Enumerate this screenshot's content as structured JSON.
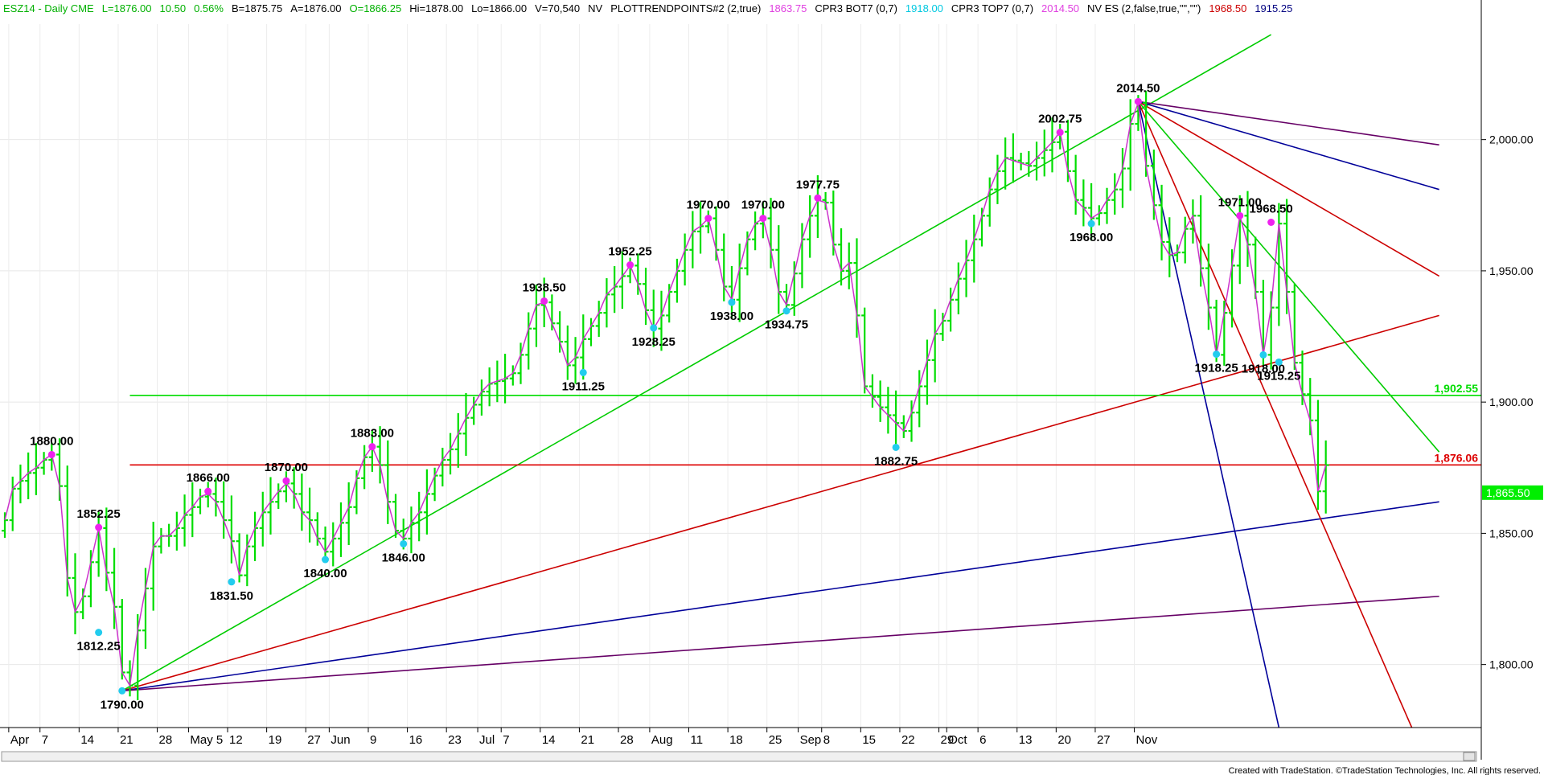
{
  "header": {
    "items": [
      {
        "text": "ESZ14 - Daily  CME",
        "color": "#00b000"
      },
      {
        "text": "L=1876.00",
        "color": "#00b000"
      },
      {
        "text": "10.50",
        "color": "#00b000"
      },
      {
        "text": "0.56%",
        "color": "#00b000"
      },
      {
        "text": "B=1875.75",
        "color": "#000000"
      },
      {
        "text": "A=1876.00",
        "color": "#000000"
      },
      {
        "text": "O=1866.25",
        "color": "#00b000"
      },
      {
        "text": "Hi=1878.00",
        "color": "#000000"
      },
      {
        "text": "Lo=1866.00",
        "color": "#000000"
      },
      {
        "text": "V=70,540",
        "color": "#000000"
      },
      {
        "text": "NV",
        "color": "#000000"
      },
      {
        "text": "PLOTTRENDPOINTS#2 (2,true)",
        "color": "#000000"
      },
      {
        "text": "1863.75",
        "color": "#e040e0"
      },
      {
        "text": "CPR3 BOT7 (0,7)",
        "color": "#000000"
      },
      {
        "text": "1918.00",
        "color": "#00c8e0"
      },
      {
        "text": "CPR3 TOP7 (0,7)",
        "color": "#000000"
      },
      {
        "text": "2014.50",
        "color": "#e040e0"
      },
      {
        "text": "NV ES (2,false,true,\"\",\"\")",
        "color": "#000000"
      },
      {
        "text": "1968.50",
        "color": "#cc0000"
      },
      {
        "text": "1915.25",
        "color": "#000080"
      }
    ]
  },
  "footer": {
    "credit": "Created with TradeStation. ©TradeStation Technologies, Inc. All rights reserved."
  },
  "chart_data": {
    "type": "ohlc-bar",
    "symbol": "ESZ14",
    "interval": "Daily",
    "exchange": "CME",
    "ylim": [
      1776,
      2044
    ],
    "y_ticks": [
      {
        "value": 1800,
        "label": "1,800.00"
      },
      {
        "value": 1850,
        "label": "1,850.00"
      },
      {
        "value": 1900,
        "label": "1,900.00"
      },
      {
        "value": 1950,
        "label": "1,950.00"
      },
      {
        "value": 2000,
        "label": "2,000.00"
      }
    ],
    "x_ticks": [
      "Apr",
      "7",
      "14",
      "21",
      "28",
      "May 5",
      "12",
      "19",
      "27",
      "Jun",
      "9",
      "16",
      "23",
      "Jul",
      "7",
      "14",
      "21",
      "28",
      "Aug",
      "11",
      "18",
      "25",
      "Sep",
      "8",
      "15",
      "22",
      "29",
      "Oct",
      "6",
      "13",
      "20",
      "27",
      "Nov"
    ],
    "x_tick_positions": [
      0.5,
      4.5,
      9.5,
      14.5,
      19.5,
      23.5,
      28.5,
      33.5,
      38.5,
      41.5,
      46.5,
      51.5,
      56.5,
      60.5,
      63.5,
      68.5,
      73.5,
      78.5,
      82.5,
      87.5,
      92.5,
      97.5,
      101.5,
      104.5,
      109.5,
      114.5,
      119.5,
      120.5,
      124.5,
      129.5,
      134.5,
      139.5,
      144.5
    ],
    "closes": [
      1855,
      1867,
      1870,
      1873,
      1875,
      1878,
      1880,
      1868,
      1833,
      1820,
      1826,
      1839,
      1852,
      1835,
      1822,
      1797,
      1792,
      1813,
      1829,
      1845,
      1849,
      1849,
      1852,
      1857,
      1860,
      1864,
      1865,
      1862,
      1855,
      1847,
      1834,
      1845,
      1852,
      1858,
      1862,
      1866,
      1869,
      1865,
      1858,
      1855,
      1848,
      1843,
      1848,
      1854,
      1860,
      1871,
      1879,
      1883,
      1876,
      1862,
      1851,
      1848,
      1854,
      1858,
      1865,
      1872,
      1878,
      1882,
      1888,
      1894,
      1899,
      1904,
      1907,
      1908,
      1909,
      1911,
      1918,
      1928,
      1937,
      1938,
      1930,
      1923,
      1914,
      1917,
      1924,
      1929,
      1934,
      1941,
      1944,
      1948,
      1952,
      1945,
      1935,
      1928,
      1933,
      1942,
      1950,
      1958,
      1965,
      1967,
      1970,
      1958,
      1944,
      1939,
      1951,
      1962,
      1968,
      1970,
      1958,
      1942,
      1937,
      1949,
      1962,
      1971,
      1977,
      1976,
      1960,
      1950,
      1953,
      1933,
      1906,
      1902,
      1898,
      1895,
      1892,
      1889,
      1896,
      1906,
      1916,
      1926,
      1931,
      1939,
      1947,
      1954,
      1962,
      1971,
      1981,
      1988,
      1993,
      1992,
      1991,
      1990,
      1993,
      1996,
      1999,
      2003,
      1988,
      1977,
      1974,
      1970,
      1972,
      1977,
      1981,
      1989,
      2006,
      2014,
      1990,
      1975,
      1961,
      1956,
      1957,
      1966,
      1971,
      1951,
      1936,
      1918,
      1934,
      1952,
      1971,
      1960,
      1942,
      1918,
      1936,
      1968,
      1942,
      1915,
      1903,
      1893,
      1866,
      1876
    ],
    "annotations": [
      {
        "label": "1880.00",
        "price": 1880.0,
        "bar": 6,
        "pos": "above"
      },
      {
        "label": "1852.25",
        "price": 1852.25,
        "bar": 12,
        "pos": "above"
      },
      {
        "label": "1812.25",
        "price": 1812.25,
        "bar": 12,
        "pos": "below"
      },
      {
        "label": "1790.00",
        "price": 1790.0,
        "bar": 15,
        "pos": "below"
      },
      {
        "label": "1866.00",
        "price": 1866.0,
        "bar": 26,
        "pos": "above"
      },
      {
        "label": "1831.50",
        "price": 1831.5,
        "bar": 29,
        "pos": "below"
      },
      {
        "label": "1870.00",
        "price": 1870.0,
        "bar": 36,
        "pos": "above"
      },
      {
        "label": "1840.00",
        "price": 1840.0,
        "bar": 41,
        "pos": "below"
      },
      {
        "label": "1883.00",
        "price": 1883.0,
        "bar": 47,
        "pos": "above"
      },
      {
        "label": "1846.00",
        "price": 1846.0,
        "bar": 51,
        "pos": "below"
      },
      {
        "label": "1938.50",
        "price": 1938.5,
        "bar": 69,
        "pos": "above"
      },
      {
        "label": "1911.25",
        "price": 1911.25,
        "bar": 74,
        "pos": "below"
      },
      {
        "label": "1952.25",
        "price": 1952.25,
        "bar": 80,
        "pos": "above"
      },
      {
        "label": "1928.25",
        "price": 1928.25,
        "bar": 83,
        "pos": "below"
      },
      {
        "label": "1970.00",
        "price": 1970.0,
        "bar": 90,
        "pos": "above"
      },
      {
        "label": "1938.00",
        "price": 1938.0,
        "bar": 93,
        "pos": "below"
      },
      {
        "label": "1970.00",
        "price": 1970.0,
        "bar": 97,
        "pos": "above"
      },
      {
        "label": "1934.75",
        "price": 1934.75,
        "bar": 100,
        "pos": "below"
      },
      {
        "label": "1977.75",
        "price": 1977.75,
        "bar": 104,
        "pos": "above"
      },
      {
        "label": "1882.75",
        "price": 1882.75,
        "bar": 114,
        "pos": "below"
      },
      {
        "label": "2002.75",
        "price": 2002.75,
        "bar": 135,
        "pos": "above"
      },
      {
        "label": "1968.00",
        "price": 1968.0,
        "bar": 139,
        "pos": "below"
      },
      {
        "label": "2014.50",
        "price": 2014.5,
        "bar": 145,
        "pos": "above"
      },
      {
        "label": "1971.00",
        "price": 1971.0,
        "bar": 158,
        "pos": "above"
      },
      {
        "label": "1918.25",
        "price": 1918.25,
        "bar": 155,
        "pos": "below"
      },
      {
        "label": "1968.50",
        "price": 1968.5,
        "bar": 162,
        "pos": "above"
      },
      {
        "label": "1918.00",
        "price": 1918.0,
        "bar": 161,
        "pos": "below"
      },
      {
        "label": "1915.25",
        "price": 1915.25,
        "bar": 163,
        "pos": "below"
      }
    ],
    "horizontal_lines": [
      {
        "price": 1902.55,
        "label": "1,902.55",
        "color": "#00dd00"
      },
      {
        "price": 1876.06,
        "label": "1,876.06",
        "color": "#dd0000"
      }
    ],
    "last_price": {
      "price": 1865.5,
      "label": "1,865.50",
      "color": "#00ee00"
    },
    "angle_lines": [
      {
        "from": {
          "bar": 15,
          "price": 1790.0
        },
        "to": {
          "bar": 162,
          "price": 2040.0
        },
        "color": "#00cc00"
      },
      {
        "from": {
          "bar": 15,
          "price": 1790.0
        },
        "to": {
          "bar": 183.5,
          "price": 1933.0
        },
        "color": "#cc0000"
      },
      {
        "from": {
          "bar": 15,
          "price": 1790.0
        },
        "to": {
          "bar": 183.5,
          "price": 1862.0
        },
        "color": "#000099"
      },
      {
        "from": {
          "bar": 15,
          "price": 1790.0
        },
        "to": {
          "bar": 183.5,
          "price": 1826.0
        },
        "color": "#660066"
      },
      {
        "from": {
          "bar": 145,
          "price": 2014.5
        },
        "to": {
          "bar": 183.5,
          "price": 1998.0
        },
        "color": "#660066"
      },
      {
        "from": {
          "bar": 145,
          "price": 2014.5
        },
        "to": {
          "bar": 183.5,
          "price": 1981.0
        },
        "color": "#000099"
      },
      {
        "from": {
          "bar": 145,
          "price": 2014.5
        },
        "to": {
          "bar": 183.5,
          "price": 1948.0
        },
        "color": "#cc0000"
      },
      {
        "from": {
          "bar": 145,
          "price": 2014.5
        },
        "to": {
          "bar": 183.5,
          "price": 1881.0
        },
        "color": "#00cc00"
      },
      {
        "from": {
          "bar": 145,
          "price": 2014.5
        },
        "to": {
          "bar": 180,
          "price": 1776.0
        },
        "color": "#cc0000"
      },
      {
        "from": {
          "bar": 145,
          "price": 2014.5
        },
        "to": {
          "bar": 163,
          "price": 1776.0
        },
        "color": "#000099"
      }
    ],
    "colors": {
      "bars": "#00dd00",
      "zigzag": "#cc33cc",
      "pivot_high": "#ee22ee",
      "pivot_low": "#22ccee"
    }
  }
}
